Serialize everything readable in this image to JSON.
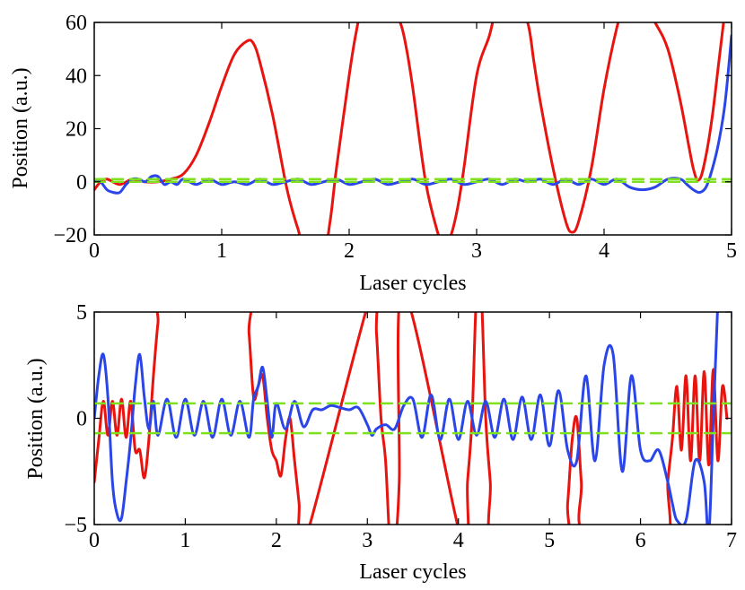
{
  "chart_data": [
    {
      "type": "line",
      "xlabel": "Laser cycles",
      "ylabel": "Position (a.u.)",
      "xlim": [
        0,
        5
      ],
      "ylim": [
        -20,
        60
      ],
      "xticks": [
        0,
        1,
        2,
        3,
        4,
        5
      ],
      "yticks": [
        -20,
        0,
        20,
        40,
        60
      ],
      "xtick_labels": [
        "0",
        "1",
        "2",
        "3",
        "4",
        "5"
      ],
      "ytick_labels": [
        "−20",
        "0",
        "20",
        "40",
        "60"
      ],
      "grid": false,
      "colors": {
        "red": "#e8140f",
        "blue": "#2a45e8",
        "green": "#7ee01e"
      },
      "series": [
        {
          "color": "#e8140f",
          "x": [
            0,
            0.05,
            0.1,
            0.2,
            0.3,
            0.4,
            0.5,
            0.6,
            0.7,
            0.8,
            0.9,
            1.0,
            1.1,
            1.2,
            1.25,
            1.3,
            1.4,
            1.5,
            1.55,
            1.6,
            1.65,
            1.8,
            1.85,
            1.9,
            2.0,
            2.05,
            2.1,
            2.2,
            2.3,
            2.4,
            2.45,
            2.5,
            2.6,
            2.7,
            2.75,
            2.8,
            2.85,
            2.9,
            3.0,
            3.1,
            3.15,
            3.2,
            3.3,
            3.4,
            3.45,
            3.5,
            3.6,
            3.7,
            3.75,
            3.8,
            3.9,
            4.0,
            4.1,
            4.15,
            4.2,
            4.3,
            4.4,
            4.5,
            4.6,
            4.7,
            4.75,
            4.8,
            4.85,
            4.9,
            4.95
          ],
          "y": [
            -3,
            0,
            1,
            -1,
            1,
            0,
            0,
            1,
            3,
            10,
            22,
            36,
            48,
            53,
            52,
            45,
            25,
            0,
            -10,
            -18,
            -25,
            -25,
            -15,
            5,
            40,
            55,
            65,
            70,
            68,
            60,
            50,
            35,
            0,
            -20,
            -25,
            -20,
            -10,
            5,
            40,
            55,
            65,
            70,
            68,
            60,
            45,
            30,
            5,
            -15,
            -19,
            -15,
            5,
            35,
            58,
            65,
            70,
            68,
            60,
            50,
            30,
            5,
            1,
            10,
            25,
            45,
            65
          ]
        },
        {
          "color": "#2a45e8",
          "x": [
            0,
            0.05,
            0.1,
            0.15,
            0.2,
            0.25,
            0.3,
            0.35,
            0.4,
            0.45,
            0.5,
            0.55,
            0.6,
            0.65,
            0.7,
            0.8,
            0.9,
            1.0,
            1.1,
            1.2,
            1.3,
            1.4,
            1.5,
            1.6,
            1.7,
            1.8,
            1.9,
            2.0,
            2.1,
            2.2,
            2.3,
            2.4,
            2.5,
            2.6,
            2.7,
            2.8,
            2.9,
            3.0,
            3.1,
            3.2,
            3.3,
            3.4,
            3.5,
            3.6,
            3.7,
            3.8,
            3.9,
            4.0,
            4.1,
            4.2,
            4.3,
            4.4,
            4.5,
            4.6,
            4.65,
            4.7,
            4.75,
            4.8,
            4.85,
            4.9,
            4.95,
            5.0
          ],
          "y": [
            1,
            0,
            -3,
            -4,
            -4,
            -1,
            1,
            1,
            0,
            2,
            2,
            -1,
            0,
            -1,
            1,
            -1,
            1,
            -1,
            0,
            -1,
            1,
            -1,
            0,
            1,
            -1,
            0,
            1,
            -1,
            0,
            1,
            -1,
            0,
            1,
            -1,
            0,
            1,
            -1,
            0,
            1,
            -1,
            1,
            0,
            1,
            -1,
            1,
            -1,
            1,
            -1,
            1,
            -2,
            -3,
            -2,
            1,
            1,
            -1,
            -3,
            -4,
            -2,
            5,
            15,
            30,
            55
          ]
        },
        {
          "color": "#7ee01e",
          "x": [
            0,
            5
          ],
          "y": [
            0,
            0
          ]
        },
        {
          "color": "#7ee01e",
          "x": [
            0,
            5
          ],
          "y": [
            1,
            1
          ]
        }
      ]
    },
    {
      "type": "line",
      "xlabel": "Laser cycles",
      "ylabel": "Position (a.u.)",
      "xlim": [
        0,
        7
      ],
      "ylim": [
        -5,
        5
      ],
      "xticks": [
        0,
        1,
        2,
        3,
        4,
        5,
        6,
        7
      ],
      "yticks": [
        -5,
        0,
        5
      ],
      "xtick_labels": [
        "0",
        "1",
        "2",
        "3",
        "4",
        "5",
        "6",
        "7"
      ],
      "ytick_labels": [
        "−5",
        "0",
        "5"
      ],
      "grid": false,
      "colors": {
        "red": "#e8140f",
        "blue": "#2a45e8",
        "green": "#7ee01e"
      },
      "series": [
        {
          "color": "#e8140f",
          "x": [
            0,
            0.05,
            0.1,
            0.15,
            0.2,
            0.25,
            0.3,
            0.35,
            0.4,
            0.45,
            0.5,
            0.55,
            0.6,
            0.65,
            0.7,
            0.75,
            1.65,
            1.7,
            1.75,
            1.8,
            1.85,
            1.9,
            1.95,
            2.0,
            2.05,
            2.1,
            2.15,
            2.2,
            2.25,
            2.3,
            3.05,
            3.1,
            3.15,
            3.2,
            3.25,
            3.3,
            3.35,
            3.4,
            4.05,
            4.1,
            4.15,
            4.2,
            4.25,
            4.3,
            4.35,
            4.4,
            5.15,
            5.2,
            5.25,
            5.3,
            5.35,
            5.4,
            6.25,
            6.3,
            6.35,
            6.4,
            6.45,
            6.5,
            6.55,
            6.6,
            6.65,
            6.7,
            6.75,
            6.8,
            6.85,
            6.9,
            6.95
          ],
          "y": [
            -3,
            -1,
            0.8,
            -0.8,
            0.8,
            -0.8,
            0.9,
            -0.9,
            0.8,
            -1.5,
            -1.5,
            -2.8,
            -1,
            2,
            4.5,
            6,
            6,
            4,
            1,
            1.5,
            2,
            0,
            -1.5,
            -2,
            -2.7,
            -1,
            0,
            -2,
            -4,
            -6,
            6,
            4,
            0,
            -2,
            -6,
            -6,
            -3,
            6,
            -6,
            -3,
            0,
            6,
            6,
            0,
            -3,
            -6,
            -6,
            -4,
            -1,
            0,
            -3,
            -5.5,
            -6,
            -3,
            -1,
            1.5,
            -1.5,
            2,
            -2,
            2,
            -2,
            2.2,
            -2.2,
            2.3,
            -2,
            1.5,
            0
          ]
        },
        {
          "color": "#2a45e8",
          "x": [
            0,
            0.05,
            0.1,
            0.15,
            0.2,
            0.25,
            0.3,
            0.35,
            0.4,
            0.45,
            0.5,
            0.55,
            0.6,
            0.65,
            0.7,
            0.8,
            0.9,
            1.0,
            1.1,
            1.2,
            1.3,
            1.4,
            1.5,
            1.6,
            1.7,
            1.75,
            1.8,
            1.85,
            1.9,
            1.95,
            2.0,
            2.1,
            2.2,
            2.3,
            2.4,
            2.5,
            2.6,
            2.7,
            2.8,
            2.9,
            3.0,
            3.05,
            3.1,
            3.2,
            3.3,
            3.4,
            3.5,
            3.6,
            3.7,
            3.8,
            3.9,
            4.0,
            4.1,
            4.2,
            4.3,
            4.4,
            4.5,
            4.6,
            4.7,
            4.8,
            4.9,
            5.0,
            5.1,
            5.2,
            5.3,
            5.4,
            5.5,
            5.6,
            5.7,
            5.8,
            5.9,
            6.0,
            6.1,
            6.2,
            6.3,
            6.35,
            6.4,
            6.5,
            6.6,
            6.7,
            6.75,
            6.8,
            6.85
          ],
          "y": [
            0,
            2,
            3,
            1,
            -3,
            -4.5,
            -4.7,
            -3,
            -1,
            1.5,
            3,
            1,
            -0.5,
            0.8,
            -0.8,
            0.9,
            -0.9,
            0.9,
            -0.8,
            0.8,
            -0.9,
            0.9,
            -0.8,
            0.8,
            -0.9,
            0.9,
            1.5,
            2.4,
            0.8,
            -0.9,
            0.7,
            -0.5,
            0.8,
            -0.4,
            0.4,
            0.4,
            0.6,
            0.5,
            0.4,
            0.5,
            -0.3,
            -0.8,
            -0.5,
            -0.3,
            -0.5,
            0.6,
            0.9,
            -0.9,
            1.1,
            -1,
            0.9,
            -1,
            0.8,
            -0.8,
            0.8,
            -0.9,
            0.9,
            -1,
            1,
            -1,
            1.1,
            -1.3,
            1.3,
            -1.5,
            -2,
            2,
            -2,
            2.5,
            3,
            -2.5,
            2,
            -1.5,
            -2,
            -1.5,
            -3,
            -4,
            -4.8,
            -4.8,
            -2,
            -3,
            -5.5,
            0,
            5.5
          ]
        },
        {
          "color": "#7ee01e",
          "x": [
            0,
            7
          ],
          "y": [
            0.7,
            0.7
          ]
        },
        {
          "color": "#7ee01e",
          "x": [
            0,
            7
          ],
          "y": [
            -0.7,
            -0.7
          ]
        }
      ]
    }
  ]
}
